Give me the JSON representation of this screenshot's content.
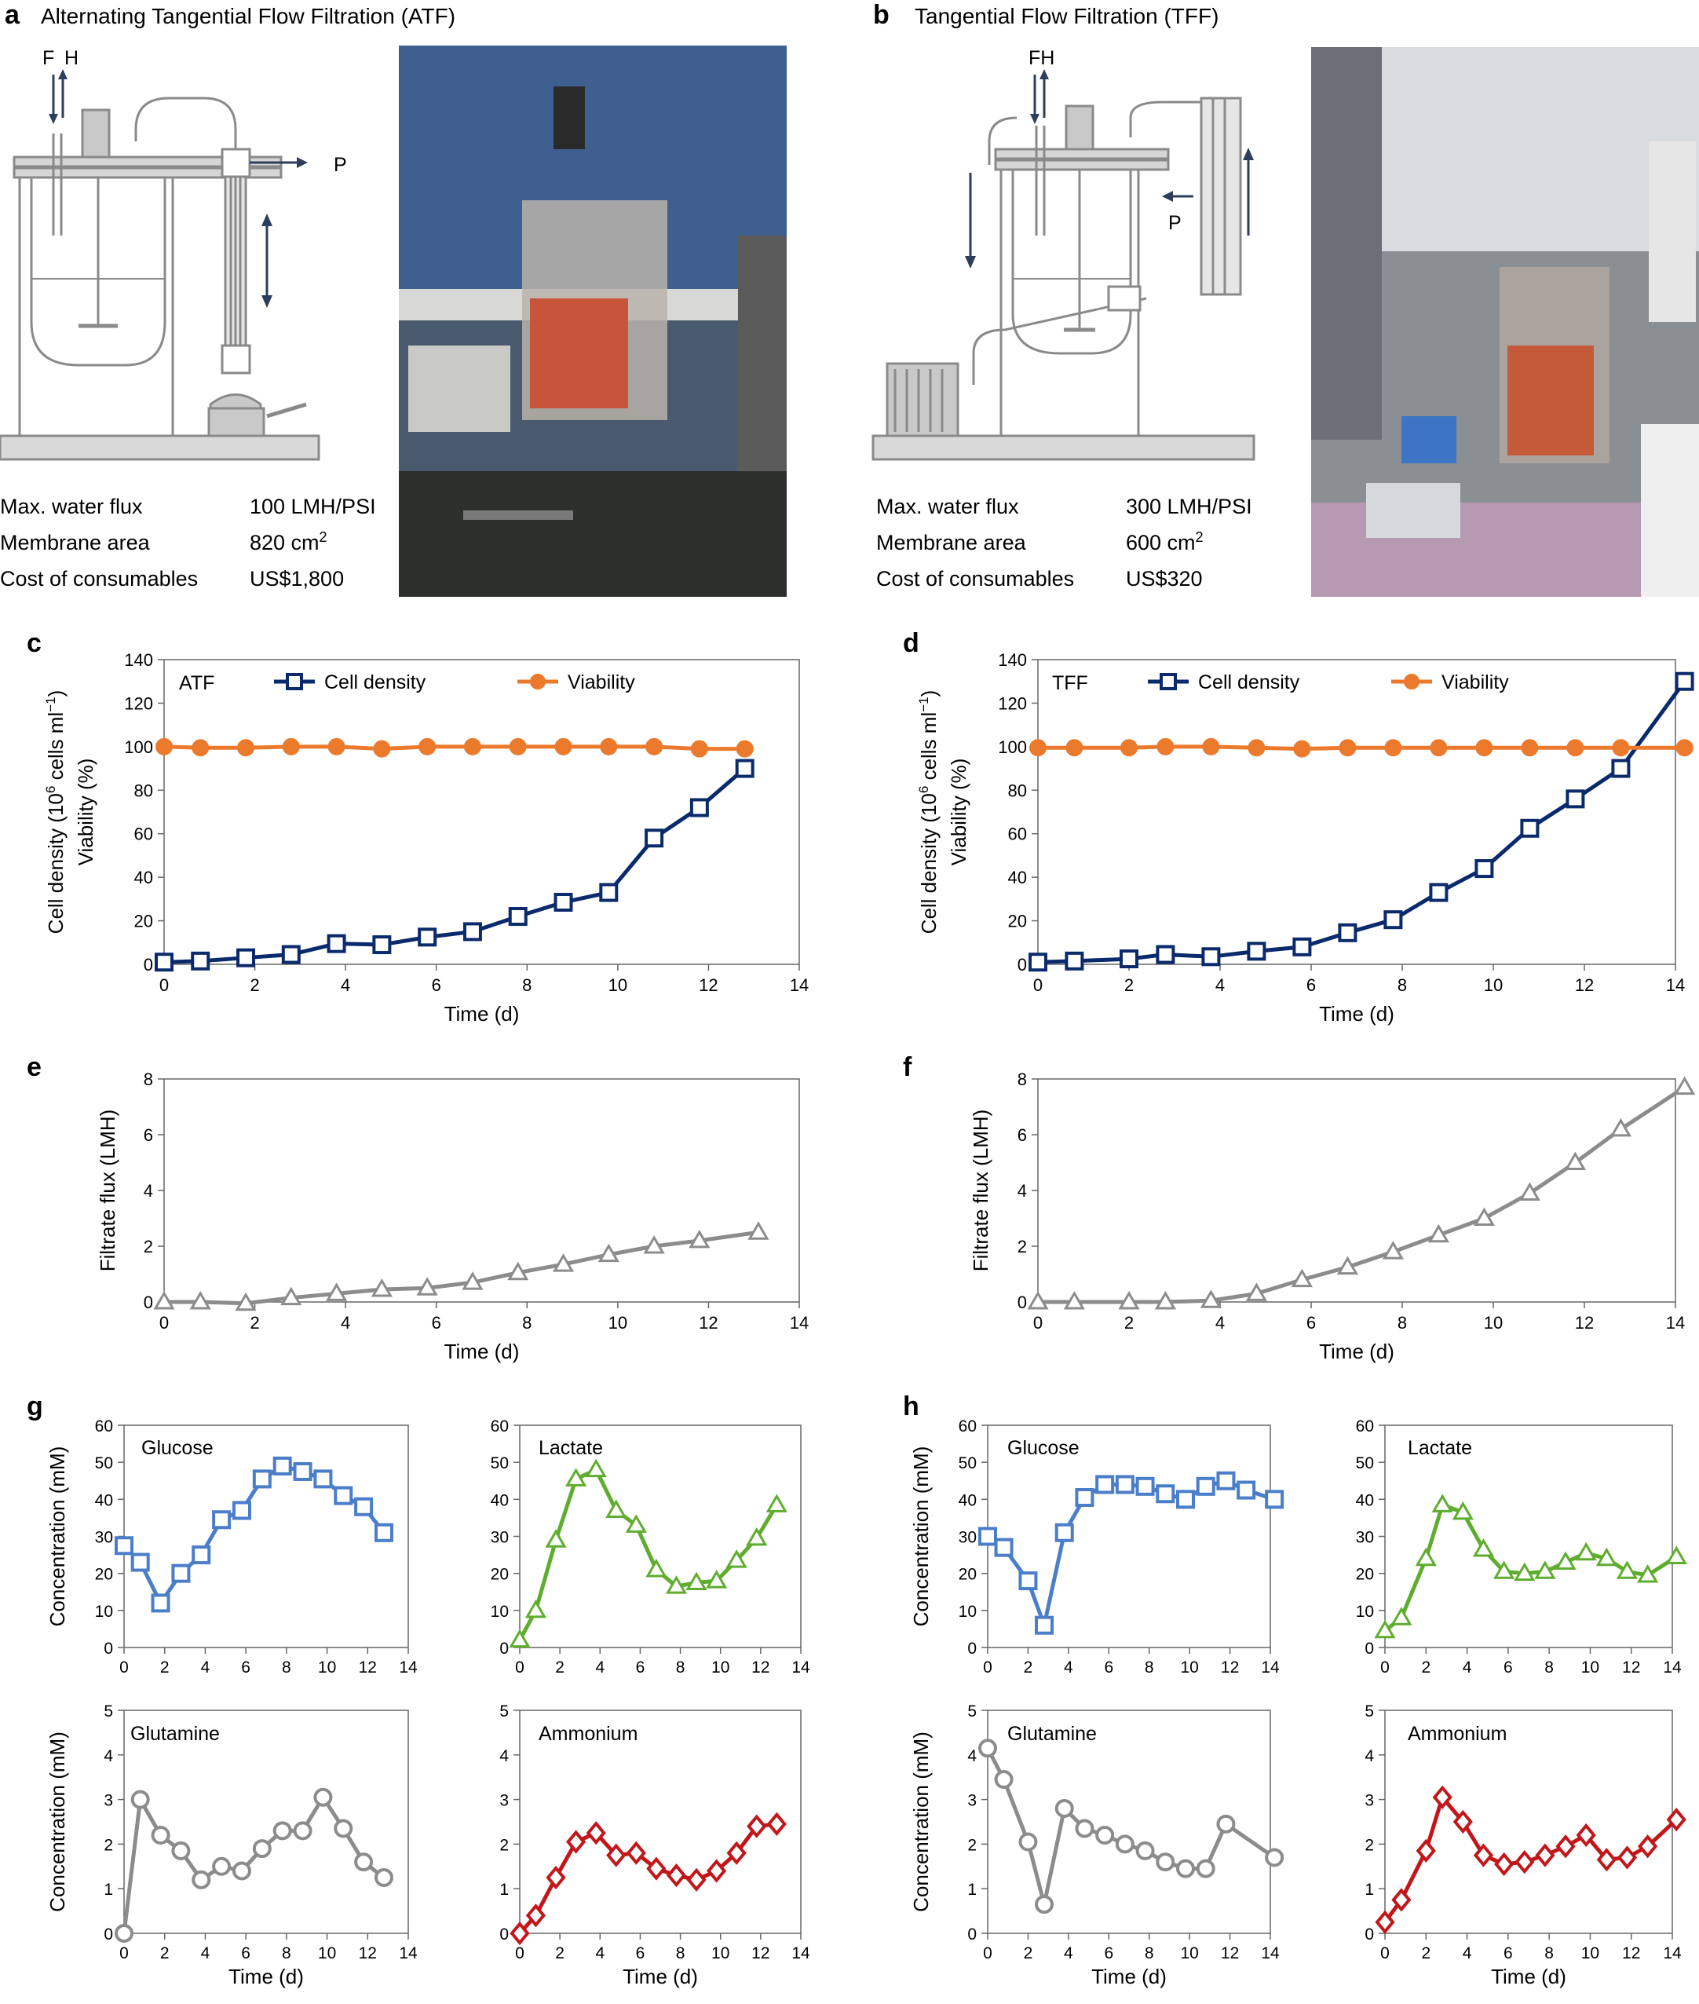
{
  "panel_a": {
    "letter": "a",
    "title": "Alternating Tangential Flow Filtration (ATF)",
    "flow_labels": [
      "F",
      "H",
      "P"
    ],
    "specs": [
      {
        "label": "Max. water flux",
        "value": "100 LMH/PSI"
      },
      {
        "label": "Membrane area",
        "value": "820 cm",
        "sup": "2"
      },
      {
        "label": "Cost of consumables",
        "value": "US$1,800"
      }
    ]
  },
  "panel_b": {
    "letter": "b",
    "title": "Tangential Flow Filtration (TFF)",
    "flow_labels": [
      "FH",
      "P"
    ],
    "specs": [
      {
        "label": "Max. water flux",
        "value": "300 LMH/PSI"
      },
      {
        "label": "Membrane area",
        "value": "600 cm",
        "sup": "2"
      },
      {
        "label": "Cost of consumables",
        "value": "US$320"
      }
    ]
  },
  "colors": {
    "cell_density": "#0b2a6b",
    "viability": "#ec7a2c",
    "flux": "#8c8c8c",
    "glucose": "#4a7ec9",
    "lactate": "#5fad2e",
    "glutamine": "#8c8c8c",
    "ammonium": "#c2161a",
    "axis": "#666666"
  },
  "chart_data": [
    {
      "id": "c",
      "letter": "c",
      "type": "line",
      "inlabel": "ATF",
      "ylabel_line1": "Cell density (10",
      "ylabel_sup": "6",
      "ylabel_mid": " cells ml",
      "ylabel_sup2": "−1",
      "ylabel_end": ")",
      "ylabel_line2": "Viability (%)",
      "xlabel": "Time (d)",
      "xlim": [
        0,
        14
      ],
      "ylim": [
        0,
        140
      ],
      "xticks": [
        0,
        2,
        4,
        6,
        8,
        10,
        12,
        14
      ],
      "yticks": [
        0,
        20,
        40,
        60,
        80,
        100,
        120,
        140
      ],
      "series": [
        {
          "name": "Cell density",
          "marker": "square",
          "color_key": "cell_density",
          "x": [
            0,
            0.8,
            1.8,
            2.8,
            3.8,
            4.8,
            5.8,
            6.8,
            7.8,
            8.8,
            9.8,
            10.8,
            11.8,
            12.8
          ],
          "y": [
            1,
            1.5,
            3,
            4.5,
            9.5,
            9,
            12.5,
            15,
            22,
            28.5,
            33,
            58,
            72,
            90
          ]
        },
        {
          "name": "Viability",
          "marker": "circle",
          "color_key": "viability",
          "x": [
            0,
            0.8,
            1.8,
            2.8,
            3.8,
            4.8,
            5.8,
            6.8,
            7.8,
            8.8,
            9.8,
            10.8,
            11.8,
            12.8
          ],
          "y": [
            100,
            99.5,
            99.5,
            100,
            100,
            99,
            100,
            100,
            100,
            100,
            100,
            100,
            99,
            99
          ]
        }
      ]
    },
    {
      "id": "d",
      "letter": "d",
      "type": "line",
      "inlabel": "TFF",
      "ylabel_line1": "Cell density (10",
      "ylabel_sup": "6",
      "ylabel_mid": " cells ml",
      "ylabel_sup2": "−1",
      "ylabel_end": ")",
      "ylabel_line2": "Viability (%)",
      "xlabel": "Time (d)",
      "xlim": [
        0,
        14
      ],
      "ylim": [
        0,
        140
      ],
      "xticks": [
        0,
        2,
        4,
        6,
        8,
        10,
        12,
        14
      ],
      "yticks": [
        0,
        20,
        40,
        60,
        80,
        100,
        120,
        140
      ],
      "series": [
        {
          "name": "Cell density",
          "marker": "square",
          "color_key": "cell_density",
          "x": [
            0,
            0.8,
            2,
            2.8,
            3.8,
            4.8,
            5.8,
            6.8,
            7.8,
            8.8,
            9.8,
            10.8,
            11.8,
            12.8,
            14.2
          ],
          "y": [
            1,
            1.5,
            2.5,
            4.5,
            3.5,
            6,
            8,
            14.5,
            20.5,
            33,
            44,
            62.5,
            76,
            90,
            130
          ]
        },
        {
          "name": "Viability",
          "marker": "circle",
          "color_key": "viability",
          "x": [
            0,
            0.8,
            2,
            2.8,
            3.8,
            4.8,
            5.8,
            6.8,
            7.8,
            8.8,
            9.8,
            10.8,
            11.8,
            12.8,
            14.2
          ],
          "y": [
            99.5,
            99.5,
            99.5,
            100,
            100,
            99.5,
            99,
            99.5,
            99.5,
            99.5,
            99.5,
            99.5,
            99.5,
            99.5,
            99.5
          ]
        }
      ]
    },
    {
      "id": "e",
      "letter": "e",
      "type": "line",
      "ylabel_line1": "Filtrate flux (LMH)",
      "xlabel": "Time (d)",
      "xlim": [
        0,
        14
      ],
      "ylim": [
        0,
        8
      ],
      "xticks": [
        0,
        2,
        4,
        6,
        8,
        10,
        12,
        14
      ],
      "yticks": [
        0,
        2,
        4,
        6,
        8
      ],
      "series": [
        {
          "marker": "triangle",
          "color_key": "flux",
          "x": [
            0,
            0.8,
            1.8,
            2.8,
            3.8,
            4.8,
            5.8,
            6.8,
            7.8,
            8.8,
            9.8,
            10.8,
            11.8,
            13.1
          ],
          "y": [
            0,
            0,
            -0.05,
            0.15,
            0.3,
            0.45,
            0.5,
            0.7,
            1.05,
            1.35,
            1.7,
            2.0,
            2.2,
            2.5
          ]
        }
      ]
    },
    {
      "id": "f",
      "letter": "f",
      "type": "line",
      "ylabel_line1": "Filtrate flux (LMH)",
      "xlabel": "Time (d)",
      "xlim": [
        0,
        14
      ],
      "ylim": [
        0,
        8
      ],
      "xticks": [
        0,
        2,
        4,
        6,
        8,
        10,
        12,
        14
      ],
      "yticks": [
        0,
        2,
        4,
        6,
        8
      ],
      "series": [
        {
          "marker": "triangle",
          "color_key": "flux",
          "x": [
            0,
            0.8,
            2,
            2.8,
            3.8,
            4.8,
            5.8,
            6.8,
            7.8,
            8.8,
            9.8,
            10.8,
            11.8,
            12.8,
            14.2
          ],
          "y": [
            0,
            0,
            0,
            0,
            0.05,
            0.3,
            0.8,
            1.25,
            1.8,
            2.4,
            3.0,
            3.9,
            5.0,
            6.2,
            7.7
          ]
        }
      ]
    },
    {
      "id": "g1",
      "letter": "g",
      "type": "line",
      "inlabel": "Glucose",
      "ylabel_line1": "Concentration (mM)",
      "xlim": [
        0,
        14
      ],
      "ylim": [
        0,
        60
      ],
      "xticks": [
        0,
        2,
        4,
        6,
        8,
        10,
        12,
        14
      ],
      "yticks": [
        0,
        10,
        20,
        30,
        40,
        50,
        60
      ],
      "series": [
        {
          "marker": "square",
          "color_key": "glucose",
          "x": [
            0,
            0.8,
            1.8,
            2.8,
            3.8,
            4.8,
            5.8,
            6.8,
            7.8,
            8.8,
            9.8,
            10.8,
            11.8,
            12.8
          ],
          "y": [
            27.5,
            23,
            12,
            20,
            25,
            34.5,
            37,
            45.5,
            49,
            47.5,
            45.5,
            41,
            38,
            31
          ]
        }
      ]
    },
    {
      "id": "g2",
      "type": "line",
      "inlabel": "Lactate",
      "xlim": [
        0,
        14
      ],
      "ylim": [
        0,
        60
      ],
      "xticks": [
        0,
        2,
        4,
        6,
        8,
        10,
        12,
        14
      ],
      "yticks": [
        0,
        10,
        20,
        30,
        40,
        50,
        60
      ],
      "series": [
        {
          "marker": "triangle",
          "color_key": "lactate",
          "x": [
            0,
            0.8,
            1.8,
            2.8,
            3.8,
            4.8,
            5.8,
            6.8,
            7.8,
            8.8,
            9.8,
            10.8,
            11.8,
            12.8
          ],
          "y": [
            2,
            10,
            29,
            45.5,
            48,
            37,
            33,
            21,
            16.5,
            17.5,
            18,
            23.5,
            29.5,
            38.5
          ]
        }
      ]
    },
    {
      "id": "g3",
      "type": "line",
      "inlabel": "Glutamine",
      "ylabel_line1": "Concentration (mM)",
      "xlabel": "Time (d)",
      "xlim": [
        0,
        14
      ],
      "ylim": [
        0,
        5
      ],
      "xticks": [
        0,
        2,
        4,
        6,
        8,
        10,
        12,
        14
      ],
      "yticks": [
        0,
        1,
        2,
        3,
        4,
        5
      ],
      "series": [
        {
          "marker": "circle-open",
          "color_key": "glutamine",
          "x": [
            0,
            0.8,
            1.8,
            2.8,
            3.8,
            4.8,
            5.8,
            6.8,
            7.8,
            8.8,
            9.8,
            10.8,
            11.8,
            12.8
          ],
          "y": [
            0,
            3.0,
            2.2,
            1.85,
            1.2,
            1.5,
            1.4,
            1.9,
            2.3,
            2.3,
            3.05,
            2.35,
            1.6,
            1.25
          ]
        }
      ]
    },
    {
      "id": "g4",
      "type": "line",
      "inlabel": "Ammonium",
      "xlabel": "Time (d)",
      "xlim": [
        0,
        14
      ],
      "ylim": [
        0,
        5
      ],
      "xticks": [
        0,
        2,
        4,
        6,
        8,
        10,
        12,
        14
      ],
      "yticks": [
        0,
        1,
        2,
        3,
        4,
        5
      ],
      "series": [
        {
          "marker": "diamond",
          "color_key": "ammonium",
          "x": [
            0,
            0.8,
            1.8,
            2.8,
            3.8,
            4.8,
            5.8,
            6.8,
            7.8,
            8.8,
            9.8,
            10.8,
            11.8,
            12.8
          ],
          "y": [
            0,
            0.4,
            1.25,
            2.05,
            2.25,
            1.75,
            1.8,
            1.45,
            1.3,
            1.2,
            1.4,
            1.8,
            2.4,
            2.45
          ]
        }
      ]
    },
    {
      "id": "h1",
      "letter": "h",
      "type": "line",
      "inlabel": "Glucose",
      "ylabel_line1": "Concentration (mM)",
      "xlim": [
        0,
        14
      ],
      "ylim": [
        0,
        60
      ],
      "xticks": [
        0,
        2,
        4,
        6,
        8,
        10,
        12,
        14
      ],
      "yticks": [
        0,
        10,
        20,
        30,
        40,
        50,
        60
      ],
      "series": [
        {
          "marker": "square",
          "color_key": "glucose",
          "x": [
            0,
            0.8,
            2,
            2.8,
            3.8,
            4.8,
            5.8,
            6.8,
            7.8,
            8.8,
            9.8,
            10.8,
            11.8,
            12.8,
            14.2
          ],
          "y": [
            30,
            27,
            18,
            6,
            31,
            40.5,
            44,
            44,
            43.5,
            41.5,
            40,
            43.5,
            45,
            42.5,
            40
          ]
        }
      ]
    },
    {
      "id": "h2",
      "type": "line",
      "inlabel": "Lactate",
      "xlim": [
        0,
        14
      ],
      "ylim": [
        0,
        60
      ],
      "xticks": [
        0,
        2,
        4,
        6,
        8,
        10,
        12,
        14
      ],
      "yticks": [
        0,
        10,
        20,
        30,
        40,
        50,
        60
      ],
      "series": [
        {
          "marker": "triangle",
          "color_key": "lactate",
          "x": [
            0,
            0.8,
            2,
            2.8,
            3.8,
            4.8,
            5.8,
            6.8,
            7.8,
            8.8,
            9.8,
            10.8,
            11.8,
            12.8,
            14.2
          ],
          "y": [
            4.5,
            8,
            24,
            38.5,
            36.5,
            26.5,
            20.5,
            20,
            20.5,
            23,
            25.5,
            24,
            20.5,
            19.5,
            24.5
          ]
        }
      ]
    },
    {
      "id": "h3",
      "type": "line",
      "inlabel": "Glutamine",
      "ylabel_line1": "Concentration (mM)",
      "xlabel": "Time (d)",
      "xlim": [
        0,
        14
      ],
      "ylim": [
        0,
        5
      ],
      "xticks": [
        0,
        2,
        4,
        6,
        8,
        10,
        12,
        14
      ],
      "yticks": [
        0,
        1,
        2,
        3,
        4,
        5
      ],
      "series": [
        {
          "marker": "circle-open",
          "color_key": "glutamine",
          "x": [
            0,
            0.8,
            2,
            2.8,
            3.8,
            4.8,
            5.8,
            6.8,
            7.8,
            8.8,
            9.8,
            10.8,
            11.8,
            14.2
          ],
          "y": [
            4.15,
            3.45,
            2.05,
            0.65,
            2.8,
            2.35,
            2.2,
            2.0,
            1.85,
            1.6,
            1.45,
            1.45,
            2.45,
            1.7
          ]
        }
      ]
    },
    {
      "id": "h4",
      "type": "line",
      "inlabel": "Ammonium",
      "xlabel": "Time (d)",
      "xlim": [
        0,
        14
      ],
      "ylim": [
        0,
        5
      ],
      "xticks": [
        0,
        2,
        4,
        6,
        8,
        10,
        12,
        14
      ],
      "yticks": [
        0,
        1,
        2,
        3,
        4,
        5
      ],
      "series": [
        {
          "marker": "diamond",
          "color_key": "ammonium",
          "x": [
            0,
            0.8,
            2,
            2.8,
            3.8,
            4.8,
            5.8,
            6.8,
            7.8,
            8.8,
            9.8,
            10.8,
            11.8,
            12.8,
            14.2
          ],
          "y": [
            0.25,
            0.75,
            1.85,
            3.05,
            2.5,
            1.75,
            1.55,
            1.6,
            1.75,
            1.95,
            2.2,
            1.65,
            1.7,
            1.95,
            2.55
          ]
        }
      ]
    }
  ]
}
